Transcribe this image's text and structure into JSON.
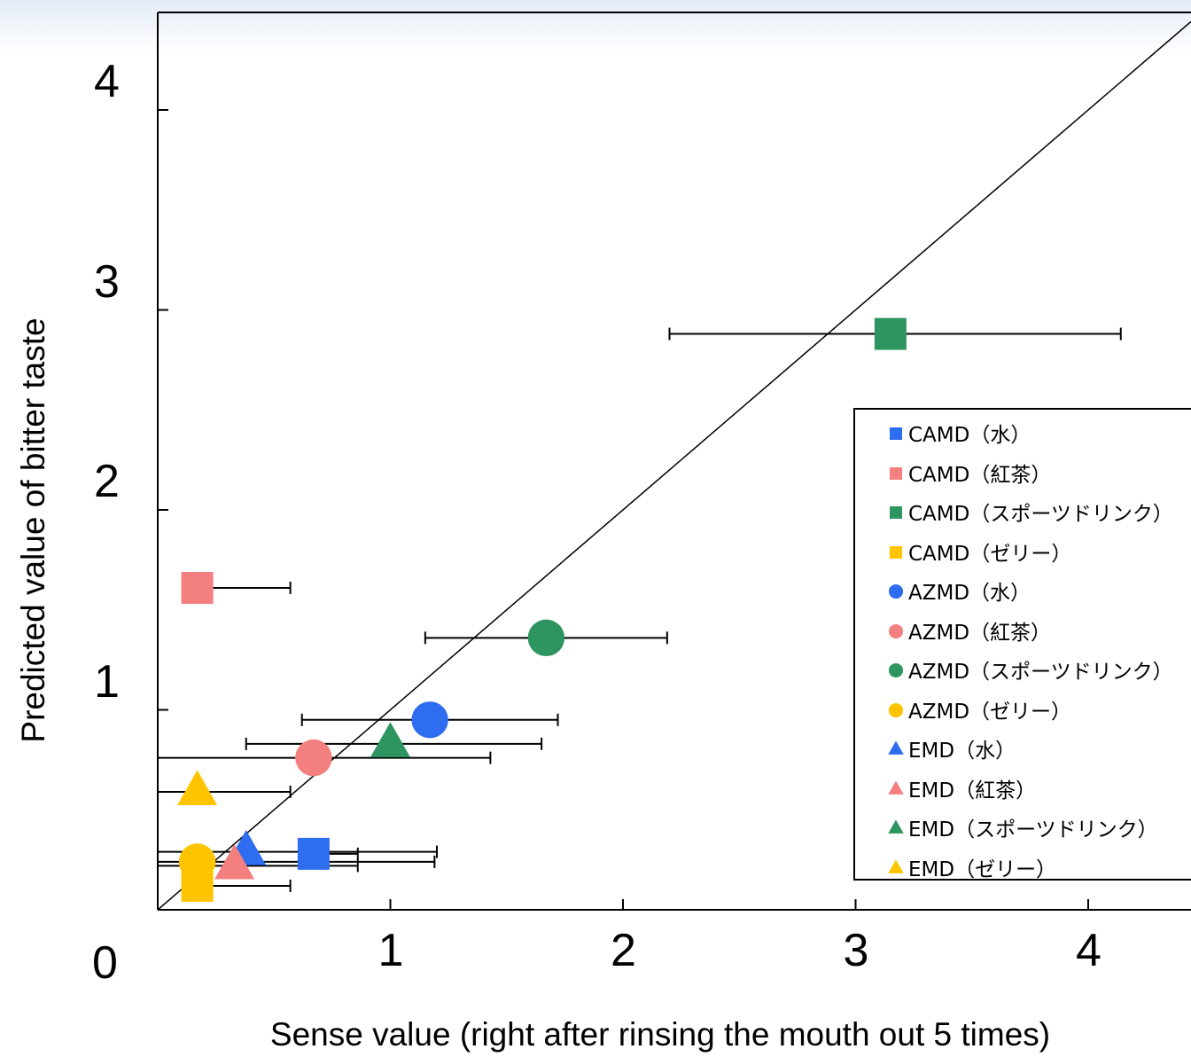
{
  "chart_data": {
    "type": "scatter",
    "xlabel": "Sense value (right after rinsing the mouth out 5 times)",
    "ylabel": "Predicted value of bitter taste",
    "xlim": [
      0,
      4.4
    ],
    "ylim": [
      0,
      4.5
    ],
    "x_ticks": [
      "1",
      "2",
      "3",
      "4"
    ],
    "y_ticks": [
      "1",
      "2",
      "3",
      "4"
    ],
    "origin_label": "0",
    "reference_line": {
      "label": "y = x"
    },
    "legend_position": "right",
    "series": [
      {
        "name": "CAMD（水）",
        "shape": "square",
        "color": "#2e6cf0",
        "x": 0.67,
        "y": 0.28,
        "xerr": [
          0.62,
          0.86
        ]
      },
      {
        "name": "CAMD（紅茶）",
        "shape": "square",
        "color": "#f47f7f",
        "x": 0.17,
        "y": 1.61,
        "xerr": [
          0.17,
          0.57
        ]
      },
      {
        "name": "CAMD（スポーツドリンク）",
        "shape": "square",
        "color": "#2e9460",
        "x": 3.15,
        "y": 2.88,
        "xerr": [
          2.2,
          4.14
        ]
      },
      {
        "name": "CAMD（ゼリー）",
        "shape": "square",
        "color": "#ffc400",
        "x": 0.17,
        "y": 0.12,
        "xerr": [
          0.17,
          0.57
        ]
      },
      {
        "name": "AZMD（水）",
        "shape": "circle",
        "color": "#2e6cf0",
        "x": 1.17,
        "y": 0.95,
        "xerr": [
          0.62,
          1.72
        ]
      },
      {
        "name": "AZMD（紅茶）",
        "shape": "circle",
        "color": "#f47f7f",
        "x": 0.67,
        "y": 0.76,
        "xerr": [
          0.0,
          1.43
        ]
      },
      {
        "name": "AZMD（スポーツドリンク）",
        "shape": "circle",
        "color": "#2e9460",
        "x": 1.67,
        "y": 1.36,
        "xerr": [
          1.15,
          2.19
        ]
      },
      {
        "name": "AZMD（ゼリー）",
        "shape": "circle",
        "color": "#ffc400",
        "x": 0.17,
        "y": 0.24,
        "xerr": [
          0.0,
          1.19
        ]
      },
      {
        "name": "EMD（水）",
        "shape": "triangle",
        "color": "#2e6cf0",
        "x": 0.38,
        "y": 0.29,
        "xerr": [
          0.0,
          1.2
        ]
      },
      {
        "name": "EMD（紅茶）",
        "shape": "triangle",
        "color": "#f47f7f",
        "x": 0.33,
        "y": 0.22,
        "xerr": [
          0.0,
          0.86
        ]
      },
      {
        "name": "EMD（スポーツドリンク）",
        "shape": "triangle",
        "color": "#2e9460",
        "x": 1.0,
        "y": 0.83,
        "xerr": [
          0.38,
          1.65
        ]
      },
      {
        "name": "EMD（ゼリー）",
        "shape": "triangle",
        "color": "#ffc400",
        "x": 0.17,
        "y": 0.59,
        "xerr": [
          0.0,
          0.57
        ]
      }
    ]
  }
}
